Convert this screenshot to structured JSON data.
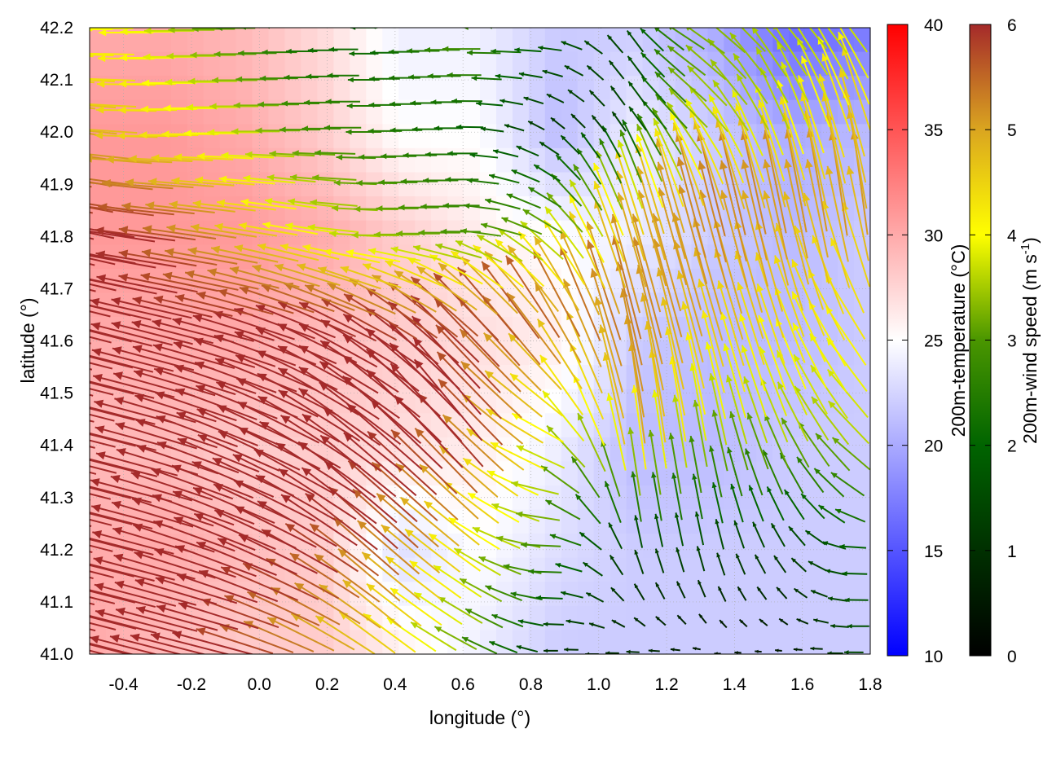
{
  "chart_data": {
    "type": "heatmap",
    "subtype": "vector-field over temperature map",
    "xlabel": "longitude (°)",
    "ylabel": "latitude (°)",
    "xlim": [
      -0.5,
      1.8
    ],
    "ylim": [
      41.0,
      42.2
    ],
    "xticks": [
      "-0.4",
      "-0.2",
      "0.0",
      "0.2",
      "0.4",
      "0.6",
      "0.8",
      "1.0",
      "1.2",
      "1.4",
      "1.6",
      "1.8"
    ],
    "yticks": [
      "41.0",
      "41.1",
      "41.2",
      "41.3",
      "41.4",
      "41.5",
      "41.6",
      "41.7",
      "41.8",
      "41.9",
      "42.0",
      "42.1",
      "42.2"
    ],
    "grid": true,
    "temperature": {
      "label": "200m-temperature (°C)",
      "range": [
        10,
        40
      ],
      "ticks": [
        "10",
        "15",
        "20",
        "25",
        "30",
        "35",
        "40"
      ],
      "colors": {
        "low": "#0000ff",
        "mid": "#ffffff",
        "high": "#ff0000"
      },
      "lon": [
        -0.5,
        -0.27,
        -0.04,
        0.19,
        0.42,
        0.65,
        0.88,
        1.11,
        1.34,
        1.57,
        1.8
      ],
      "lat": [
        42.2,
        42.0,
        41.8,
        41.6,
        41.4,
        41.2,
        41.0
      ],
      "values": [
        [
          30,
          30,
          29,
          27,
          24,
          24,
          22,
          22,
          20,
          16,
          17
        ],
        [
          31,
          31,
          30,
          28,
          25,
          25,
          21,
          24,
          22,
          20,
          21
        ],
        [
          31,
          31,
          31,
          30,
          28,
          26,
          25,
          24,
          22,
          21,
          22
        ],
        [
          30,
          30,
          30,
          29,
          28,
          27,
          26,
          22,
          21,
          21,
          22
        ],
        [
          29,
          29,
          28,
          28,
          27,
          26,
          24,
          21,
          21,
          22,
          22
        ],
        [
          30,
          30,
          29,
          28,
          23,
          25,
          23,
          22,
          22,
          22,
          22
        ],
        [
          30,
          29,
          28,
          28,
          26,
          24,
          22,
          22,
          22,
          22,
          22
        ]
      ]
    },
    "wind": {
      "label_main": "200m-wind speed (m s",
      "label_sup": "-1",
      "label_end": ")",
      "range": [
        0,
        6
      ],
      "ticks": [
        "0",
        "1",
        "2",
        "3",
        "4",
        "5",
        "6"
      ],
      "colors": [
        "#000000",
        "#003000",
        "#006400",
        "#4a9600",
        "#ffff00",
        "#daa520",
        "#a52a2a"
      ],
      "lon": [
        -0.5,
        -0.27,
        -0.04,
        0.19,
        0.42,
        0.65,
        0.88,
        1.11,
        1.34,
        1.57,
        1.8
      ],
      "lat": [
        42.2,
        42.0,
        41.8,
        41.6,
        41.4,
        41.2,
        41.0
      ],
      "uv": [
        [
          [
            -4,
            0
          ],
          [
            -4,
            0
          ],
          [
            -3,
            0
          ],
          [
            -2,
            0
          ],
          [
            -2,
            0
          ],
          [
            -3,
            0
          ],
          [
            -2,
            0
          ],
          [
            -1,
            1
          ],
          [
            -3,
            1
          ],
          [
            -3,
            2
          ],
          [
            -3,
            2
          ]
        ],
        [
          [
            -5,
            0.5
          ],
          [
            -4.5,
            0
          ],
          [
            -4,
            0
          ],
          [
            -3,
            0
          ],
          [
            -2.5,
            0
          ],
          [
            -2,
            0
          ],
          [
            -1,
            0.5
          ],
          [
            -1,
            1
          ],
          [
            -3,
            2
          ],
          [
            -2,
            3
          ],
          [
            -2,
            4
          ]
        ],
        [
          [
            -6,
            1
          ],
          [
            -6,
            0.5
          ],
          [
            -5,
            0.5
          ],
          [
            -4,
            0.5
          ],
          [
            -3.5,
            0
          ],
          [
            -3,
            0
          ],
          [
            -3,
            1
          ],
          [
            -2,
            4
          ],
          [
            -2,
            5
          ],
          [
            -1.5,
            5
          ],
          [
            -1,
            5
          ]
        ],
        [
          [
            -6,
            1
          ],
          [
            -6,
            1
          ],
          [
            -6,
            1
          ],
          [
            -6,
            1.5
          ],
          [
            -5.5,
            2
          ],
          [
            -5,
            3
          ],
          [
            -4,
            4
          ],
          [
            -2,
            5
          ],
          [
            -2,
            4.5
          ],
          [
            -2,
            4
          ],
          [
            -3,
            3
          ]
        ],
        [
          [
            -6,
            1
          ],
          [
            -6,
            1
          ],
          [
            -6,
            1.5
          ],
          [
            -6,
            2
          ],
          [
            -6,
            3
          ],
          [
            -5,
            4
          ],
          [
            -4,
            1
          ],
          [
            -1,
            5
          ],
          [
            -1,
            3.5
          ],
          [
            -2,
            3
          ],
          [
            -3,
            2
          ]
        ],
        [
          [
            -6,
            1
          ],
          [
            -6,
            1
          ],
          [
            -6,
            1.5
          ],
          [
            -6,
            2
          ],
          [
            -5,
            3
          ],
          [
            -4,
            2
          ],
          [
            -3,
            0
          ],
          [
            -0.5,
            1.5
          ],
          [
            -0.5,
            1.5
          ],
          [
            -1,
            1
          ],
          [
            -2,
            0
          ]
        ],
        [
          [
            -6,
            1
          ],
          [
            -6,
            1
          ],
          [
            -6,
            1
          ],
          [
            -5,
            1.5
          ],
          [
            -4,
            2
          ],
          [
            -3,
            1
          ],
          [
            -1,
            0
          ],
          [
            -1,
            0
          ],
          [
            -0.5,
            0
          ],
          [
            -0.5,
            0
          ],
          [
            -1.5,
            0
          ]
        ]
      ]
    }
  }
}
